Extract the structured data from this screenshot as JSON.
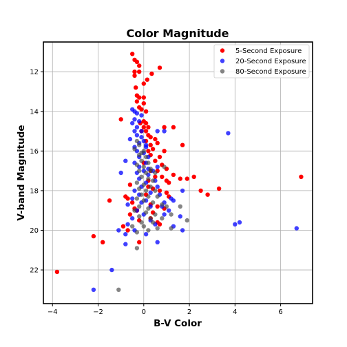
{
  "chart_data": {
    "type": "scatter",
    "title": "Color Magnitude",
    "xlabel": "B-V Color",
    "ylabel": "V-band Magnitude",
    "xlim": [
      -4.4,
      7.4
    ],
    "ylim": [
      23.7,
      10.5
    ],
    "y_inverted": true,
    "xticks": [
      -4,
      -2,
      0,
      2,
      4,
      6
    ],
    "yticks": [
      12,
      14,
      16,
      18,
      20,
      22
    ],
    "grid": true,
    "legend_position": "top-right",
    "series": [
      {
        "name": "5-Second Exposure",
        "color": "#ff0000",
        "points": [
          [
            -0.5,
            11.1
          ],
          [
            -0.4,
            11.4
          ],
          [
            -0.3,
            11.5
          ],
          [
            -0.2,
            11.7
          ],
          [
            0.7,
            11.8
          ],
          [
            -0.4,
            12.0
          ],
          [
            -0.2,
            12.0
          ],
          [
            -0.4,
            12.2
          ],
          [
            0.35,
            12.1
          ],
          [
            0.15,
            12.4
          ],
          [
            0,
            12.6
          ],
          [
            -0.35,
            12.8
          ],
          [
            -0.3,
            13.2
          ],
          [
            -0.2,
            13.3
          ],
          [
            0,
            13.3
          ],
          [
            -0.3,
            13.5
          ],
          [
            0,
            13.6
          ],
          [
            -0.2,
            13.8
          ],
          [
            -0.1,
            13.9
          ],
          [
            0.1,
            14.0
          ],
          [
            -1.0,
            14.4
          ],
          [
            0,
            14.5
          ],
          [
            -0.15,
            14.6
          ],
          [
            0.1,
            14.6
          ],
          [
            0,
            14.8
          ],
          [
            0.2,
            14.8
          ],
          [
            0.9,
            14.8
          ],
          [
            1.3,
            14.8
          ],
          [
            -0.1,
            15.0
          ],
          [
            0.1,
            15.0
          ],
          [
            0.2,
            15.2
          ],
          [
            0.3,
            15.3
          ],
          [
            0.5,
            15.4
          ],
          [
            0.6,
            15.6
          ],
          [
            1.7,
            15.7
          ],
          [
            0.3,
            15.7
          ],
          [
            0.4,
            15.9
          ],
          [
            0.9,
            16.0
          ],
          [
            0.2,
            16.0
          ],
          [
            0.3,
            16.2
          ],
          [
            0.7,
            16.3
          ],
          [
            0.5,
            16.5
          ],
          [
            0.8,
            16.7
          ],
          [
            1.0,
            16.9
          ],
          [
            0.3,
            17.0
          ],
          [
            0.6,
            17.0
          ],
          [
            1.3,
            17.2
          ],
          [
            0.8,
            17.3
          ],
          [
            0.5,
            17.3
          ],
          [
            1.0,
            17.5
          ],
          [
            1.6,
            17.4
          ],
          [
            1.9,
            17.4
          ],
          [
            2.2,
            17.3
          ],
          [
            1.1,
            17.6
          ],
          [
            -0.6,
            17.7
          ],
          [
            0.2,
            17.8
          ],
          [
            0.4,
            17.9
          ],
          [
            2.5,
            18.0
          ],
          [
            3.3,
            17.9
          ],
          [
            0.7,
            18.0
          ],
          [
            1.0,
            18.1
          ],
          [
            1.1,
            18.3
          ],
          [
            2.8,
            18.2
          ],
          [
            -0.8,
            18.3
          ],
          [
            -0.7,
            18.4
          ],
          [
            -1.5,
            18.5
          ],
          [
            -0.5,
            18.6
          ],
          [
            0.3,
            18.7
          ],
          [
            0.6,
            18.8
          ],
          [
            -0.4,
            18.9
          ],
          [
            0.9,
            18.9
          ],
          [
            -0.3,
            19.0
          ],
          [
            0.4,
            19.1
          ],
          [
            -0.6,
            19.2
          ],
          [
            0.3,
            19.4
          ],
          [
            -0.2,
            19.5
          ],
          [
            0.6,
            19.6
          ],
          [
            0.7,
            19.7
          ],
          [
            -0.9,
            19.8
          ],
          [
            -0.7,
            20.0
          ],
          [
            -2.2,
            20.3
          ],
          [
            -1.8,
            20.6
          ],
          [
            -0.2,
            20.6
          ],
          [
            6.9,
            17.3
          ],
          [
            -3.8,
            22.1
          ],
          [
            0.1,
            15.5
          ],
          [
            0.0,
            16.6
          ],
          [
            0.2,
            17.5
          ],
          [
            0.1,
            18.2
          ]
        ]
      },
      {
        "name": "20-Second Exposure",
        "color": "#0000ff",
        "points": [
          [
            -0.5,
            13.9
          ],
          [
            -0.4,
            14.0
          ],
          [
            -0.3,
            14.1
          ],
          [
            -0.1,
            14.2
          ],
          [
            -0.4,
            14.4
          ],
          [
            -0.2,
            14.5
          ],
          [
            -0.5,
            14.6
          ],
          [
            -0.3,
            14.8
          ],
          [
            -0.4,
            15.0
          ],
          [
            -0.1,
            15.0
          ],
          [
            0.6,
            15.0
          ],
          [
            0.9,
            15.0
          ],
          [
            3.7,
            15.1
          ],
          [
            -0.3,
            15.2
          ],
          [
            -0.1,
            15.3
          ],
          [
            -0.6,
            15.4
          ],
          [
            0,
            15.5
          ],
          [
            -0.2,
            15.6
          ],
          [
            -0.4,
            15.8
          ],
          [
            0.1,
            15.8
          ],
          [
            -0.3,
            16.0
          ],
          [
            0,
            16.1
          ],
          [
            -0.2,
            16.3
          ],
          [
            0.2,
            16.3
          ],
          [
            -0.8,
            16.5
          ],
          [
            -0.4,
            16.6
          ],
          [
            0.1,
            16.6
          ],
          [
            -0.2,
            16.8
          ],
          [
            0.6,
            16.8
          ],
          [
            0,
            17.0
          ],
          [
            0.4,
            17.0
          ],
          [
            -0.3,
            17.1
          ],
          [
            -1.0,
            17.1
          ],
          [
            0.2,
            17.2
          ],
          [
            -0.2,
            17.4
          ],
          [
            0.5,
            17.5
          ],
          [
            0.1,
            17.6
          ],
          [
            -0.1,
            17.8
          ],
          [
            0.6,
            17.8
          ],
          [
            1.7,
            18.0
          ],
          [
            -0.4,
            18.0
          ],
          [
            0.3,
            18.1
          ],
          [
            -0.2,
            18.2
          ],
          [
            0.7,
            18.2
          ],
          [
            1.2,
            18.4
          ],
          [
            -0.5,
            18.4
          ],
          [
            0.1,
            18.5
          ],
          [
            0.9,
            18.6
          ],
          [
            1.3,
            18.5
          ],
          [
            -0.7,
            18.7
          ],
          [
            0.3,
            18.8
          ],
          [
            0.8,
            18.8
          ],
          [
            -0.3,
            19.0
          ],
          [
            1.1,
            19.0
          ],
          [
            0,
            19.2
          ],
          [
            0.9,
            19.2
          ],
          [
            -0.5,
            19.4
          ],
          [
            0.3,
            19.5
          ],
          [
            1.6,
            19.3
          ],
          [
            -0.7,
            19.7
          ],
          [
            0.5,
            19.7
          ],
          [
            1.3,
            19.8
          ],
          [
            -1.1,
            20.0
          ],
          [
            -0.4,
            20.0
          ],
          [
            1.7,
            20.0
          ],
          [
            -0.8,
            20.2
          ],
          [
            0.1,
            20.2
          ],
          [
            0.6,
            20.6
          ],
          [
            -0.8,
            20.7
          ],
          [
            4.0,
            19.7
          ],
          [
            4.2,
            19.6
          ],
          [
            6.7,
            19.9
          ],
          [
            -1.4,
            22.0
          ],
          [
            -2.2,
            23.0
          ],
          [
            0.1,
            15.7
          ],
          [
            0.2,
            16.9
          ],
          [
            -0.1,
            18.6
          ]
        ]
      },
      {
        "name": "80-Second Exposure",
        "color": "#444444",
        "points": [
          [
            -0.3,
            15.5
          ],
          [
            -0.2,
            15.7
          ],
          [
            -0.4,
            15.9
          ],
          [
            0,
            16.0
          ],
          [
            -0.2,
            16.2
          ],
          [
            0.1,
            16.3
          ],
          [
            -0.1,
            16.5
          ],
          [
            0.2,
            16.6
          ],
          [
            -0.3,
            16.7
          ],
          [
            0,
            16.8
          ],
          [
            0.3,
            16.9
          ],
          [
            0.9,
            16.8
          ],
          [
            -0.2,
            17.0
          ],
          [
            0.1,
            17.1
          ],
          [
            0.5,
            17.1
          ],
          [
            -0.1,
            17.3
          ],
          [
            0.2,
            17.4
          ],
          [
            0.4,
            17.5
          ],
          [
            -0.3,
            17.6
          ],
          [
            0,
            17.7
          ],
          [
            0.3,
            17.8
          ],
          [
            -0.2,
            17.9
          ],
          [
            0.1,
            18.0
          ],
          [
            0.5,
            18.0
          ],
          [
            -0.1,
            18.2
          ],
          [
            0.2,
            18.3
          ],
          [
            0.6,
            18.3
          ],
          [
            -0.3,
            18.4
          ],
          [
            0,
            18.5
          ],
          [
            0.4,
            18.6
          ],
          [
            0.8,
            18.7
          ],
          [
            -0.2,
            18.8
          ],
          [
            0.2,
            18.9
          ],
          [
            1.0,
            18.8
          ],
          [
            1.6,
            18.8
          ],
          [
            -0.4,
            19.0
          ],
          [
            0.1,
            19.1
          ],
          [
            0.5,
            19.2
          ],
          [
            1.2,
            19.2
          ],
          [
            -0.2,
            19.3
          ],
          [
            0.3,
            19.4
          ],
          [
            0.8,
            19.4
          ],
          [
            1.9,
            19.5
          ],
          [
            -0.1,
            19.6
          ],
          [
            0.4,
            19.6
          ],
          [
            -0.5,
            19.8
          ],
          [
            0,
            19.8
          ],
          [
            0.6,
            19.9
          ],
          [
            1.2,
            19.9
          ],
          [
            -0.3,
            20.1
          ],
          [
            0.2,
            20.0
          ],
          [
            -0.3,
            20.9
          ],
          [
            -1.1,
            23.0
          ],
          [
            0.3,
            17.0
          ],
          [
            -0.1,
            16.1
          ]
        ]
      }
    ]
  }
}
